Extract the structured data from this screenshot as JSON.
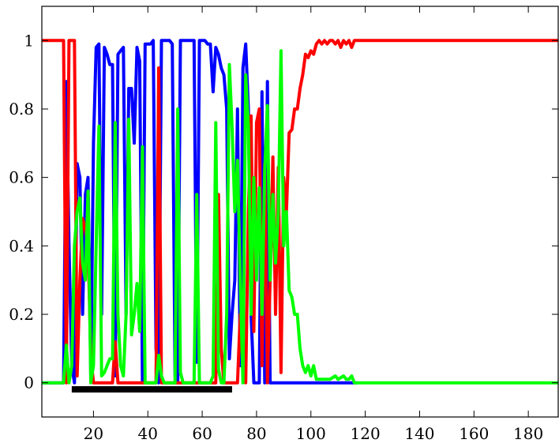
{
  "chart_data": {
    "type": "line",
    "title": "",
    "xlabel": "",
    "ylabel": "",
    "xlim": [
      1,
      191
    ],
    "ylim": [
      -0.1,
      1.1
    ],
    "grid": false,
    "legend": "none",
    "x_ticks": [
      20,
      40,
      60,
      80,
      100,
      120,
      140,
      160,
      180
    ],
    "y_ticks": [
      0,
      0.2,
      0.4,
      0.6,
      0.8,
      1
    ],
    "y_tick_labels": [
      "0",
      "0.2",
      "0.4",
      "0.6",
      "0.8",
      "1"
    ],
    "highlight_segment": {
      "x_start": 12,
      "x_end": 71,
      "y": -0.01,
      "color": "#000000"
    },
    "series": [
      {
        "color": "#0000ff",
        "points": [
          [
            1,
            0
          ],
          [
            9,
            0
          ],
          [
            10,
            0.88
          ],
          [
            11,
            0.4
          ],
          [
            12,
            0.05
          ],
          [
            13,
            0
          ],
          [
            14,
            0.64
          ],
          [
            15,
            0.6
          ],
          [
            16,
            0.2
          ],
          [
            17,
            0.55
          ],
          [
            18,
            0.6
          ],
          [
            19,
            0.02
          ],
          [
            20,
            0.7
          ],
          [
            21,
            0.98
          ],
          [
            22,
            0.99
          ],
          [
            23,
            0.2
          ],
          [
            24,
            0.98
          ],
          [
            25,
            0.96
          ],
          [
            26,
            0.93
          ],
          [
            27,
            0.93
          ],
          [
            28,
            0.02
          ],
          [
            29,
            0.96
          ],
          [
            30,
            0.97
          ],
          [
            31,
            0.98
          ],
          [
            32,
            0.2
          ],
          [
            33,
            0.86
          ],
          [
            34,
            0.86
          ],
          [
            35,
            0.7
          ],
          [
            36,
            0.98
          ],
          [
            37,
            0.94
          ],
          [
            38,
            0
          ],
          [
            39,
            0.99
          ],
          [
            40,
            0.99
          ],
          [
            41,
            0.99
          ],
          [
            42,
            1
          ],
          [
            43,
            0.1
          ],
          [
            44,
            0
          ],
          [
            45,
            1
          ],
          [
            46,
            1
          ],
          [
            47,
            1
          ],
          [
            48,
            1
          ],
          [
            49,
            0.99
          ],
          [
            50,
            0.02
          ],
          [
            51,
            0
          ],
          [
            52,
            1
          ],
          [
            53,
            1
          ],
          [
            54,
            1
          ],
          [
            55,
            1
          ],
          [
            56,
            1
          ],
          [
            57,
            1
          ],
          [
            58,
            0.06
          ],
          [
            59,
            1
          ],
          [
            60,
            1
          ],
          [
            61,
            1
          ],
          [
            62,
            0.99
          ],
          [
            63,
            0.99
          ],
          [
            64,
            0.85
          ],
          [
            65,
            0.98
          ],
          [
            66,
            0.96
          ],
          [
            67,
            0.92
          ],
          [
            68,
            0.9
          ],
          [
            69,
            0.8
          ],
          [
            70,
            0.07
          ],
          [
            71,
            0.2
          ],
          [
            72,
            0.3
          ],
          [
            73,
            0.8
          ],
          [
            74,
            0.05
          ],
          [
            75,
            0.92
          ],
          [
            76,
            0.99
          ],
          [
            77,
            0.8
          ],
          [
            78,
            0.2
          ],
          [
            79,
            0
          ],
          [
            80,
            0
          ],
          [
            81,
            0
          ],
          [
            82,
            0.85
          ],
          [
            83,
            0
          ],
          [
            84,
            0.88
          ],
          [
            85,
            0
          ],
          [
            86,
            0
          ],
          [
            117,
            0
          ]
        ]
      },
      {
        "color": "#ff0000",
        "points": [
          [
            1,
            1
          ],
          [
            9,
            1
          ],
          [
            10,
            0
          ],
          [
            11,
            1
          ],
          [
            12,
            1
          ],
          [
            13,
            1
          ],
          [
            14,
            0.02
          ],
          [
            15,
            0.3
          ],
          [
            16,
            0.48
          ],
          [
            17,
            0.45
          ],
          [
            18,
            0.4
          ],
          [
            19,
            0.08
          ],
          [
            20,
            0
          ],
          [
            27,
            0
          ],
          [
            28,
            0.12
          ],
          [
            29,
            0
          ],
          [
            43,
            0
          ],
          [
            44,
            0.92
          ],
          [
            45,
            0
          ],
          [
            65,
            0
          ],
          [
            66,
            0.55
          ],
          [
            67,
            0.1
          ],
          [
            68,
            0
          ],
          [
            73,
            0
          ],
          [
            74,
            0.2
          ],
          [
            75,
            0.05
          ],
          [
            76,
            0
          ],
          [
            77,
            0.5
          ],
          [
            78,
            0.78
          ],
          [
            79,
            0.15
          ],
          [
            80,
            0.76
          ],
          [
            81,
            0.8
          ],
          [
            82,
            0.05
          ],
          [
            83,
            0.64
          ],
          [
            84,
            0
          ],
          [
            85,
            0.3
          ],
          [
            86,
            0.66
          ],
          [
            87,
            0.2
          ],
          [
            88,
            0.63
          ],
          [
            89,
            0.03
          ],
          [
            90,
            0.6
          ],
          [
            91,
            0.5
          ],
          [
            92,
            0.73
          ],
          [
            93,
            0.74
          ],
          [
            94,
            0.8
          ],
          [
            95,
            0.8
          ],
          [
            96,
            0.86
          ],
          [
            97,
            0.9
          ],
          [
            98,
            0.96
          ],
          [
            99,
            0.95
          ],
          [
            100,
            0.97
          ],
          [
            101,
            0.96
          ],
          [
            102,
            0.99
          ],
          [
            103,
            1
          ],
          [
            104,
            0.99
          ],
          [
            105,
            1
          ],
          [
            106,
            0.99
          ],
          [
            107,
            1
          ],
          [
            108,
            1
          ],
          [
            109,
            0.99
          ],
          [
            110,
            1
          ],
          [
            111,
            0.98
          ],
          [
            112,
            1
          ],
          [
            113,
            0.99
          ],
          [
            114,
            1
          ],
          [
            115,
            0.98
          ],
          [
            116,
            1
          ],
          [
            117,
            1
          ],
          [
            191,
            1
          ]
        ]
      },
      {
        "color": "#00ff00",
        "points": [
          [
            1,
            0
          ],
          [
            9,
            0
          ],
          [
            10,
            0.11
          ],
          [
            11,
            0
          ],
          [
            12,
            0.05
          ],
          [
            13,
            0.4
          ],
          [
            14,
            0.5
          ],
          [
            15,
            0.54
          ],
          [
            16,
            0.35
          ],
          [
            17,
            0.3
          ],
          [
            18,
            0.56
          ],
          [
            19,
            0
          ],
          [
            20,
            0.05
          ],
          [
            21,
            0.4
          ],
          [
            22,
            0.75
          ],
          [
            23,
            0.02
          ],
          [
            24,
            0.03
          ],
          [
            25,
            0.05
          ],
          [
            26,
            0.07
          ],
          [
            27,
            0.07
          ],
          [
            28,
            0.76
          ],
          [
            29,
            0.2
          ],
          [
            30,
            0.05
          ],
          [
            31,
            0.02
          ],
          [
            32,
            0.2
          ],
          [
            33,
            0.77
          ],
          [
            34,
            0.14
          ],
          [
            35,
            0.2
          ],
          [
            36,
            0.29
          ],
          [
            37,
            0.15
          ],
          [
            38,
            0.69
          ],
          [
            39,
            0
          ],
          [
            43,
            0
          ],
          [
            44,
            0.08
          ],
          [
            45,
            0.02
          ],
          [
            46,
            0
          ],
          [
            50,
            0
          ],
          [
            51,
            0.8
          ],
          [
            52,
            0.03
          ],
          [
            53,
            0
          ],
          [
            57,
            0
          ],
          [
            58,
            0.55
          ],
          [
            59,
            0
          ],
          [
            63,
            0
          ],
          [
            64,
            0.02
          ],
          [
            65,
            0.76
          ],
          [
            66,
            0.04
          ],
          [
            67,
            0
          ],
          [
            68,
            0
          ],
          [
            69,
            0.2
          ],
          [
            70,
            0.93
          ],
          [
            71,
            0.75
          ],
          [
            72,
            0.5
          ],
          [
            73,
            0.65
          ],
          [
            74,
            0.3
          ],
          [
            75,
            0
          ],
          [
            76,
            0.9
          ],
          [
            77,
            0.75
          ],
          [
            78,
            0.2
          ],
          [
            79,
            0.6
          ],
          [
            80,
            0.3
          ],
          [
            81,
            0.57
          ],
          [
            82,
            0.2
          ],
          [
            83,
            0.62
          ],
          [
            84,
            0.81
          ],
          [
            85,
            0.3
          ],
          [
            86,
            0.55
          ],
          [
            87,
            0.35
          ],
          [
            88,
            0.5
          ],
          [
            89,
            0.97
          ],
          [
            90,
            0.4
          ],
          [
            91,
            0.5
          ],
          [
            92,
            0.27
          ],
          [
            93,
            0.25
          ],
          [
            94,
            0.2
          ],
          [
            95,
            0.2
          ],
          [
            96,
            0.1
          ],
          [
            97,
            0.05
          ],
          [
            98,
            0.03
          ],
          [
            99,
            0.05
          ],
          [
            100,
            0.02
          ],
          [
            101,
            0.05
          ],
          [
            102,
            0.01
          ],
          [
            104,
            0.01
          ],
          [
            106,
            0.01
          ],
          [
            107,
            0.01
          ],
          [
            109,
            0.02
          ],
          [
            110,
            0.01
          ],
          [
            112,
            0.02
          ],
          [
            113,
            0.01
          ],
          [
            114,
            0.01
          ],
          [
            115,
            0.02
          ],
          [
            116,
            0
          ],
          [
            117,
            0
          ],
          [
            191,
            0
          ]
        ]
      }
    ]
  }
}
